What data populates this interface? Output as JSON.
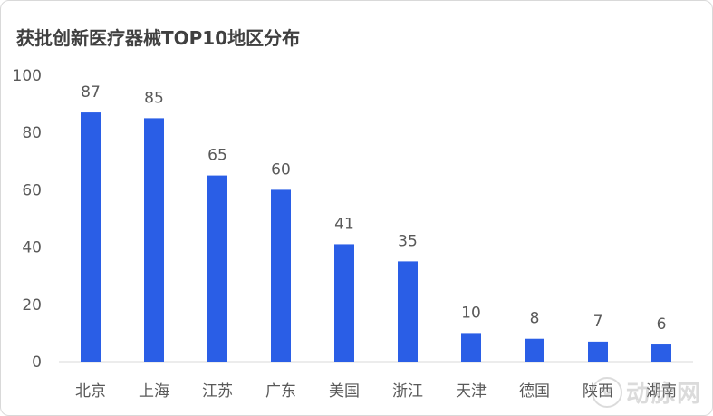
{
  "chart_data": {
    "type": "bar",
    "title": "获批创新医疗器械TOP10地区分布",
    "categories": [
      "北京",
      "上海",
      "江苏",
      "广东",
      "美国",
      "浙江",
      "天津",
      "德国",
      "陕西",
      "湖南"
    ],
    "values": [
      87,
      85,
      65,
      60,
      41,
      35,
      10,
      8,
      7,
      6
    ],
    "ylim": [
      0,
      100
    ],
    "yticks": [
      0,
      20,
      40,
      60,
      80,
      100
    ],
    "bar_color": "#2a5ee6",
    "data_labels": true,
    "grid": false,
    "legend": "none"
  },
  "watermark": {
    "logo": "V",
    "text": "动脉网"
  }
}
